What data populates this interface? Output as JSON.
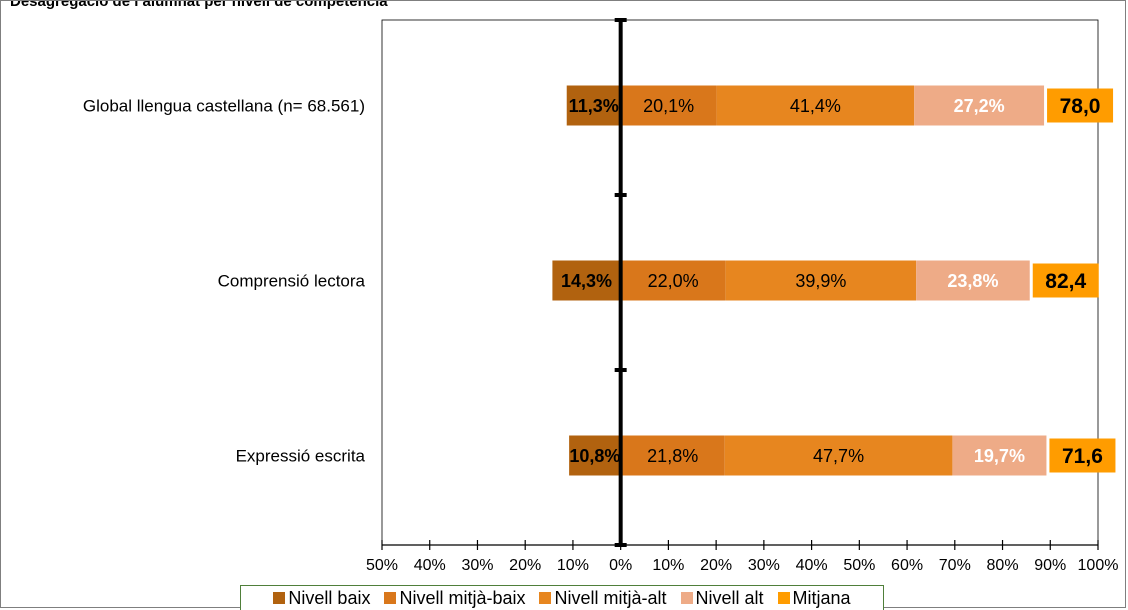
{
  "chart_data": {
    "type": "bar",
    "orientation": "horizontal",
    "stacked": "diverging",
    "title": "Desagregació de l’alumnat per nivell de competència",
    "categories": [
      "Global llengua castellana (n= 68.561)",
      "Comprensió lectora",
      "Expressió escrita"
    ],
    "series": [
      {
        "name": "Nivell baix",
        "color": "#b1620f",
        "values": [
          11.3,
          14.3,
          10.8
        ],
        "labels": [
          "11,3%",
          "14,3%",
          "10,8%"
        ],
        "direction": "negative"
      },
      {
        "name": "Nivell mitjà-baix",
        "color": "#d9771b",
        "values": [
          20.1,
          22.0,
          21.8
        ],
        "labels": [
          "20,1%",
          "22,0%",
          "21,8%"
        ],
        "direction": "positive"
      },
      {
        "name": "Nivell mitjà-alt",
        "color": "#e7861f",
        "values": [
          41.4,
          39.9,
          47.7
        ],
        "labels": [
          "41,4%",
          "39,9%",
          "47,7%"
        ],
        "direction": "positive"
      },
      {
        "name": "Nivell alt",
        "color": "#eeab87",
        "values": [
          27.2,
          23.8,
          19.7
        ],
        "labels": [
          "27,2%",
          "23,8%",
          "19,7%"
        ],
        "direction": "positive"
      }
    ],
    "mean": {
      "name": "Mitjana",
      "color": "#ff9c00",
      "values": [
        78.0,
        82.4,
        71.6
      ],
      "labels": [
        "78,0",
        "82,4",
        "71,6"
      ]
    },
    "xlim": [
      -50,
      100
    ],
    "xticks": [
      -50,
      -40,
      -30,
      -20,
      -10,
      0,
      10,
      20,
      30,
      40,
      50,
      60,
      70,
      80,
      90,
      100
    ],
    "xtick_labels": [
      "50%",
      "40%",
      "30%",
      "20%",
      "10%",
      "0%",
      "10%",
      "20%",
      "30%",
      "40%",
      "50%",
      "60%",
      "70%",
      "80%",
      "90%",
      "100%"
    ],
    "grid": false,
    "legend_position": "bottom"
  }
}
